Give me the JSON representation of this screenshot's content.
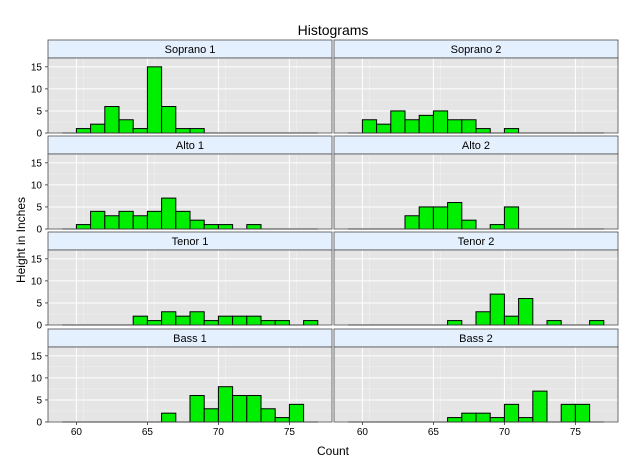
{
  "chart_data": {
    "type": "bar",
    "title": "Histograms",
    "xlabel": "Count",
    "ylabel": "Height in Inches",
    "xlim": [
      58,
      78
    ],
    "ylim": [
      0,
      17
    ],
    "x_ticks": [
      60,
      65,
      70,
      75
    ],
    "y_ticks": [
      0,
      5,
      10,
      15
    ],
    "bin_start": 60,
    "bin_width": 1,
    "baseline_range": [
      59,
      77
    ],
    "grid": true,
    "colors": {
      "bar_fill": "#00ee00",
      "bar_stroke": "#000000",
      "panel_bg": "#e5e5e5",
      "grid": "#ffffff",
      "strip_bg": "#e5f0ff",
      "frame": "#4d4d4d"
    },
    "panels": [
      {
        "label": "Soprano 1",
        "values": [
          1,
          2,
          6,
          3,
          1,
          15,
          6,
          1,
          1,
          0,
          0,
          0,
          0,
          0,
          0,
          0,
          0
        ]
      },
      {
        "label": "Soprano 2",
        "values": [
          3,
          2,
          5,
          3,
          4,
          5,
          3,
          3,
          1,
          0,
          1,
          0,
          0,
          0,
          0,
          0,
          0
        ]
      },
      {
        "label": "Alto 1",
        "values": [
          1,
          4,
          3,
          4,
          3,
          4,
          7,
          4,
          2,
          1,
          1,
          0,
          1,
          0,
          0,
          0,
          0
        ]
      },
      {
        "label": "Alto 2",
        "values": [
          0,
          0,
          0,
          3,
          5,
          5,
          6,
          2,
          0,
          1,
          5,
          0,
          0,
          0,
          0,
          0,
          0
        ]
      },
      {
        "label": "Tenor 1",
        "values": [
          0,
          0,
          0,
          0,
          2,
          1,
          3,
          2,
          3,
          1,
          2,
          2,
          2,
          1,
          1,
          0,
          1
        ]
      },
      {
        "label": "Tenor 2",
        "values": [
          0,
          0,
          0,
          0,
          0,
          0,
          1,
          0,
          3,
          7,
          2,
          6,
          0,
          1,
          0,
          0,
          1
        ]
      },
      {
        "label": "Bass 1",
        "values": [
          0,
          0,
          0,
          0,
          0,
          0,
          2,
          0,
          6,
          3,
          8,
          6,
          6,
          3,
          1,
          4,
          0
        ]
      },
      {
        "label": "Bass 2",
        "values": [
          0,
          0,
          0,
          0,
          0,
          0,
          1,
          2,
          2,
          1,
          4,
          1,
          7,
          0,
          4,
          4,
          0
        ]
      }
    ]
  }
}
